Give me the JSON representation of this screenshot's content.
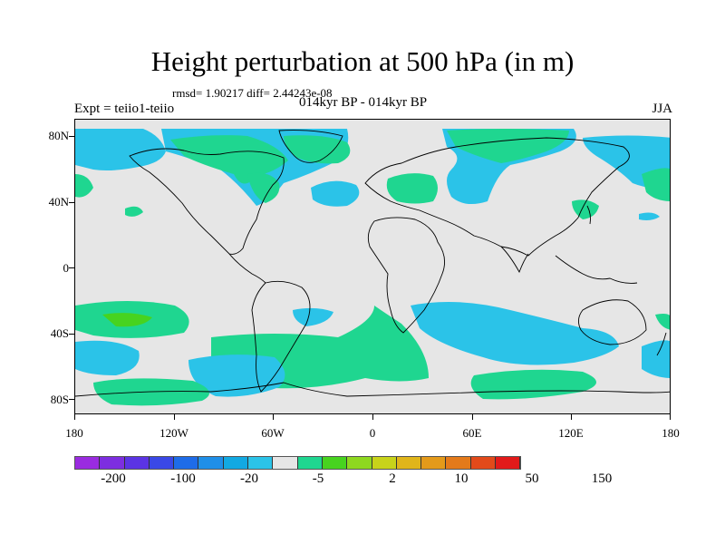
{
  "title": "Height perturbation at 500 hPa (in m)",
  "stats": "rmsd= 1.90217 diff= 2.44243e-08",
  "experiment": "Expt = teiio1-teiio",
  "period": "014kyr BP - 014kyr BP",
  "season": "JJA",
  "lat_labels": [
    "80N",
    "40N",
    "0",
    "40S",
    "80S"
  ],
  "lon_labels": [
    "180",
    "120W",
    "60W",
    "0",
    "60E",
    "120E",
    "180"
  ],
  "colorbar": {
    "colors": [
      "#9a2be0",
      "#7d2ee0",
      "#5b34e4",
      "#3a48e6",
      "#1e6ce8",
      "#1f8fe8",
      "#12a9e2",
      "#2bc3e8",
      "#e6e6e6",
      "#1fd690",
      "#47d31f",
      "#8ed81f",
      "#c8d31a",
      "#e0b51a",
      "#e49a1a",
      "#e47a1a",
      "#e24a1a",
      "#e21a1a"
    ],
    "labels": [
      "-200",
      "-100",
      "-20",
      "-5",
      "2",
      "10",
      "50",
      "150"
    ]
  }
}
